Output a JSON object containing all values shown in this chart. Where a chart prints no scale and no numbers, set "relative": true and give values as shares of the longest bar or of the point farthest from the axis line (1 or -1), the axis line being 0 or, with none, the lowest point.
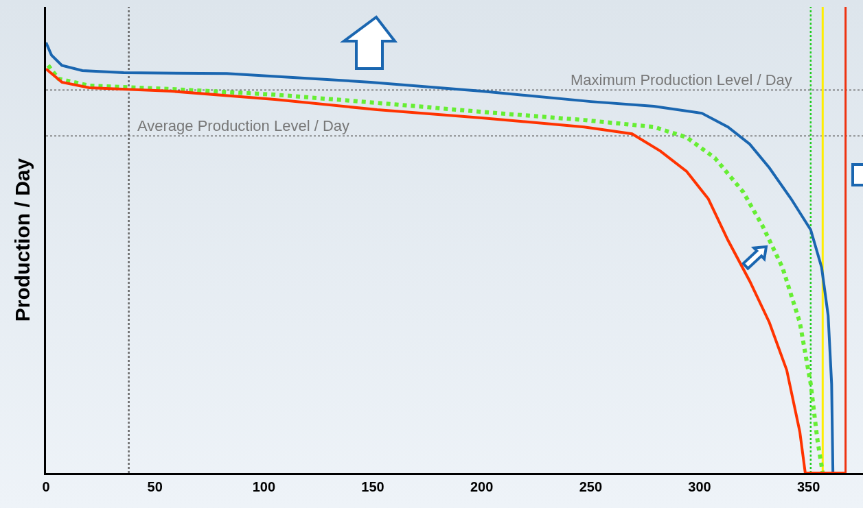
{
  "chart_data": {
    "type": "line",
    "relative": true,
    "ylabel": "Production / Day",
    "xlim": [
      0,
      375
    ],
    "xticks": [
      0,
      50,
      100,
      150,
      200,
      250,
      300,
      350
    ],
    "series": [
      {
        "color": "#1a66b0",
        "line_style": "solid",
        "x": [
          0,
          2.5,
          7.3,
          16.7,
          35.6,
          83,
          149,
          200,
          250,
          279,
          301,
          313,
          323,
          332,
          342,
          351,
          356,
          359,
          360.6,
          361.2
        ],
        "values": [
          1,
          0.971,
          0.947,
          0.935,
          0.93,
          0.928,
          0.908,
          0.887,
          0.863,
          0.852,
          0.836,
          0.804,
          0.764,
          0.709,
          0.637,
          0.565,
          0.478,
          0.366,
          0.207,
          0
        ]
      },
      {
        "color": "#66ee33",
        "line_style": "dotted",
        "x": [
          1,
          5.7,
          19.9,
          57.7,
          105,
          152,
          200,
          247,
          279,
          294,
          307,
          320,
          329,
          338,
          346,
          351,
          354,
          356.5
        ],
        "values": [
          0.947,
          0.916,
          0.9,
          0.892,
          0.879,
          0.86,
          0.839,
          0.82,
          0.804,
          0.78,
          0.732,
          0.653,
          0.573,
          0.478,
          0.35,
          0.207,
          0.08,
          0
        ]
      },
      {
        "color": "#ff3300",
        "line_style": "solid",
        "x": [
          0,
          7.3,
          19.9,
          57.7,
          105,
          152,
          200,
          247,
          269,
          282,
          294,
          304,
          313,
          323,
          332,
          340,
          346,
          348.5,
          367
        ],
        "values": [
          0.939,
          0.908,
          0.895,
          0.887,
          0.868,
          0.844,
          0.825,
          0.804,
          0.788,
          0.748,
          0.701,
          0.637,
          0.541,
          0.446,
          0.35,
          0.239,
          0.096,
          0,
          0
        ]
      }
    ],
    "ref_lines": [
      {
        "axis": "y",
        "value": 0.89,
        "label": "Maximum Production Level / Day",
        "color": "#666666",
        "line_style": "dotted"
      },
      {
        "axis": "y",
        "value": 0.783,
        "label": "Average Production Level / Day",
        "color": "#666666",
        "line_style": "dotted"
      },
      {
        "axis": "x",
        "value": 38,
        "label": null,
        "color": "#666666",
        "line_style": "dotted"
      },
      {
        "axis": "x",
        "value": 351,
        "label": null,
        "color": "#22cc22",
        "line_style": "dotted"
      },
      {
        "axis": "x",
        "value": 356.5,
        "label": null,
        "color": "#ffee00",
        "line_style": "solid"
      },
      {
        "axis": "x",
        "value": 367,
        "label": null,
        "color": "#ee3311",
        "line_style": "solid"
      }
    ]
  }
}
